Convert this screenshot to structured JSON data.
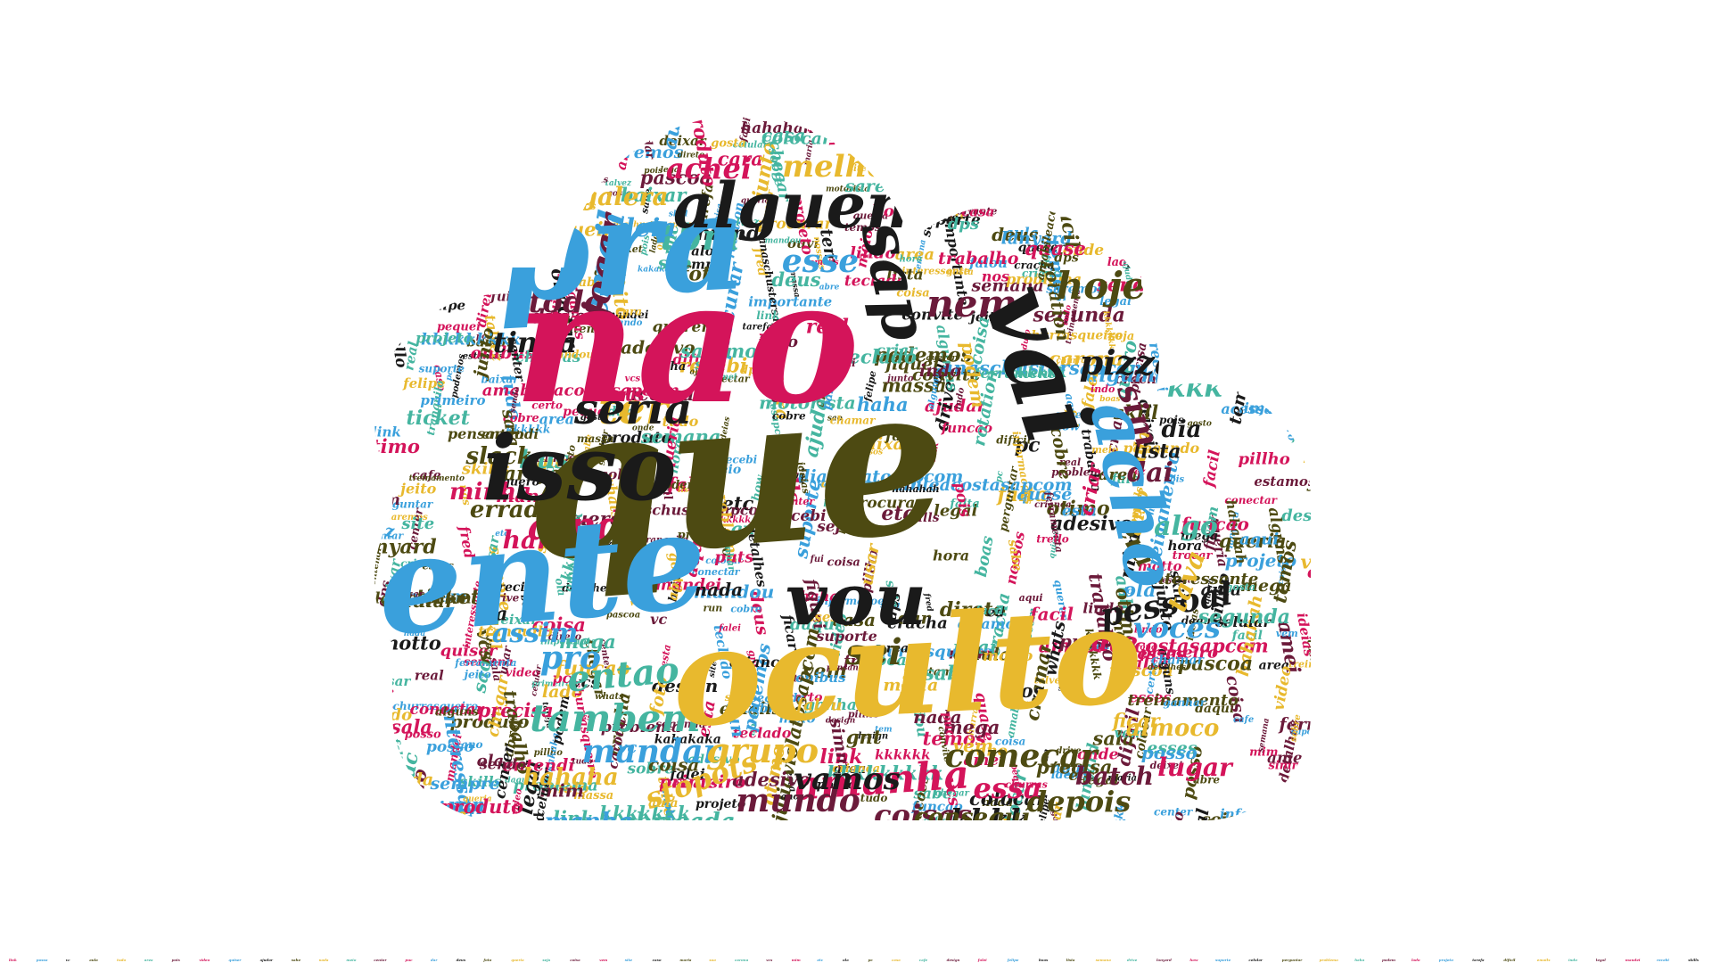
{
  "palette": {
    "pink": "#d4145a",
    "blue": "#3aa0dc",
    "black": "#1a1a1a",
    "olive": "#4d4a12",
    "gold": "#e8b92e",
    "teal": "#45b5a0",
    "maroon": "#6b1a3a"
  },
  "big_words": [
    "nao",
    "que",
    "pra",
    "gente",
    "oculto",
    "isso",
    "vai",
    "alguem",
    "acho",
    "vou",
    "sap"
  ],
  "medium_words": [
    "email",
    "ter",
    "ainda",
    "hoje",
    "nem",
    "pizza",
    "tbm",
    "esse",
    "melhor",
    "achei",
    "sei",
    "sim",
    "pessoal",
    "tambem",
    "mandar",
    "grupo",
    "amanha",
    "comecar",
    "mundo",
    "vamos",
    "entao",
    "pro",
    "stopots",
    "essa",
    "depois",
    "coisas",
    "kkkk",
    "algo",
    "voces",
    "tava",
    "ate",
    "era",
    "todo",
    "tinha",
    "bus",
    "ideia",
    "galera",
    "minha",
    "slack",
    "dai",
    "dia",
    "kkk",
    "assim",
    "almoco",
    "lugar",
    "conseguí",
    "batch",
    "falar",
    "obrigada",
    "manha",
    "hahaha",
    "hard",
    "errado",
    "jogar",
    "seria"
  ],
  "small_words": [
    "link",
    "posso",
    "vc",
    "aula",
    "tudo",
    "area",
    "pois",
    "video",
    "quiser",
    "ajudar",
    "sabe",
    "nada",
    "meio",
    "center",
    "puc",
    "dar",
    "deus",
    "foto",
    "queria",
    "seja",
    "coisa",
    "vem",
    "site",
    "caso",
    "maria",
    "sao",
    "carona",
    "vcs",
    "mim",
    "etc",
    "ola",
    "pc",
    "casa",
    "cafe",
    "design",
    "falei",
    "felipe",
    "boas",
    "lista",
    "semana",
    "drive",
    "lanyard",
    "how",
    "suporte",
    "celular",
    "perguntar",
    "problema",
    "haha",
    "podem",
    "lado",
    "projeto",
    "tarefa",
    "difícil",
    "emails",
    "indo",
    "legal",
    "mandei",
    "recebi",
    "skills",
    "whats",
    "motorista",
    "entendi",
    "colocar",
    "ferramenta",
    "trello",
    "talvez",
    "onibus",
    "sobre",
    "podemos",
    "estamos",
    "pensando",
    "teclado",
    "funcao",
    "chamar",
    "importante",
    "tranquilo",
    "deixar",
    "assar",
    "simm",
    "acessar",
    "hora",
    "gnt",
    "nos",
    "jeito",
    "abre",
    "quero",
    "gosto",
    "direto",
    "cracha",
    "pillho",
    "fred",
    "temos",
    "precisa",
    "trocar",
    "treinamento",
    "mandou",
    "primeiro",
    "motto",
    "rotation",
    "fiquei",
    "interessante",
    "algumas",
    "informacoes",
    "conectar",
    "sempre",
    "convite",
    "facil",
    "gosta",
    "ficar",
    "pequei",
    "produto",
    "sala",
    "chegar",
    "baixar",
    "puts",
    "certo",
    "massa",
    "alguns",
    "mega",
    "esta",
    "falta",
    "segunda",
    "churras",
    "procurar",
    "sendo",
    "nossos",
    "deixei",
    "crianca",
    "cobre",
    "ouvi",
    "amei",
    "criar",
    "real",
    "querer",
    "saremos",
    "dps",
    "ticket",
    "fui",
    "run",
    "skill",
    "ideias",
    "ano",
    "falou",
    "adesivo",
    "lindo",
    "quase",
    "pascoa",
    "detalhes",
    "daqui",
    "trabalho",
    "usar",
    "ganhar",
    "coisa",
    "otimo",
    "vez",
    "onde",
    "tem",
    "cara",
    "aqui",
    "sobre",
    "junto",
    "juliaviolatosapcom",
    "anaschustersapcom",
    "amabileacostasapcom",
    "kkkkkkk",
    "kkkkkk",
    "hahahah",
    "kkkkkkkkk",
    "churrasqueiro",
    "kakakaka",
    "esses"
  ]
}
